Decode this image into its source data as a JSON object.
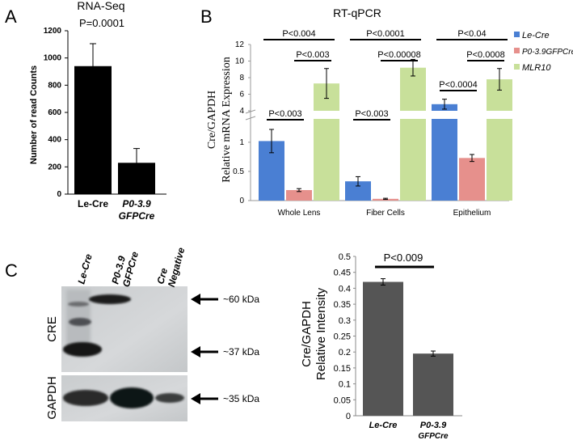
{
  "panels": {
    "a": "A",
    "b": "B",
    "c": "C"
  },
  "chart_data": [
    {
      "type": "bar",
      "panel": "A",
      "title": "RNA-Seq",
      "annotation": "P=0.0001",
      "ylabel": "Number of read Counts",
      "ylim": [
        0,
        1200
      ],
      "yticks": [
        "0",
        "200",
        "400",
        "600",
        "800",
        "1000",
        "1200"
      ],
      "categories": [
        {
          "lines": [
            "Le-Cre"
          ],
          "italic": false
        },
        {
          "lines": [
            "P0-3.9",
            "GFPCre"
          ],
          "italic": true
        }
      ],
      "values": [
        940,
        230
      ],
      "errors": [
        165,
        105
      ],
      "bar_color": "#000000",
      "grid": false
    },
    {
      "type": "bar",
      "panel": "B",
      "title": "RT-qPCR",
      "ylabel_lines": [
        "Cre/GAPDH",
        "Relative mRNA Expression"
      ],
      "broken_axis": true,
      "lower_ylim": [
        0,
        1.4
      ],
      "upper_ylim": [
        4,
        12
      ],
      "lower_yticks": [
        "0",
        "0.5",
        "1"
      ],
      "upper_yticks": [
        "4",
        "6",
        "8",
        "10",
        "12"
      ],
      "categories": [
        "Whole Lens",
        "Fiber Cells",
        "Epithelium"
      ],
      "series": [
        {
          "name": "Le-Cre",
          "color": "#4a7fd3",
          "values": [
            1.02,
            0.33,
            4.8
          ],
          "errors": [
            0.2,
            0.08,
            0.6
          ]
        },
        {
          "name": "P0-3.9GFPCre",
          "color": "#e6908c",
          "values": [
            0.18,
            0.03,
            0.73
          ],
          "errors": [
            0.025,
            0.01,
            0.06
          ]
        },
        {
          "name": "MLR10",
          "color": "#c8e09a",
          "values": [
            7.3,
            9.2,
            7.8
          ],
          "errors": [
            1.8,
            1.0,
            1.3
          ]
        }
      ],
      "annotations": [
        {
          "text": "P<0.004",
          "group": 0,
          "span": [
            0,
            2
          ]
        },
        {
          "text": "P<0.003",
          "group": 0,
          "span": [
            1,
            2
          ]
        },
        {
          "text": "P<0.003",
          "group": 0,
          "span": [
            0,
            1
          ]
        },
        {
          "text": "P<0.0001",
          "group": 1,
          "span": [
            0,
            2
          ]
        },
        {
          "text": "P<0.00008",
          "group": 1,
          "span": [
            1,
            2
          ]
        },
        {
          "text": "P<0.003",
          "group": 1,
          "span": [
            0,
            1
          ]
        },
        {
          "text": "P<0.04",
          "group": 2,
          "span": [
            0,
            2
          ]
        },
        {
          "text": "P<0.0008",
          "group": 2,
          "span": [
            1,
            2
          ]
        },
        {
          "text": "P<0.0004",
          "group": 2,
          "span": [
            0,
            1
          ]
        }
      ],
      "legend_position": "right"
    },
    {
      "type": "bar",
      "panel": "C",
      "annotation": "P<0.009",
      "ylabel_lines": [
        "Cre/GAPDH",
        "Relative Intensity"
      ],
      "ylim": [
        0,
        0.5
      ],
      "yticks": [
        "0",
        "0.05",
        "0.1",
        "0.15",
        "0.2",
        "0.25",
        "0.3",
        "0.35",
        "0.4",
        "0.45",
        "0.5"
      ],
      "categories": [
        {
          "lines": [
            "Le-Cre"
          ]
        },
        {
          "lines": [
            "P0-3.9",
            "GFPCre"
          ]
        }
      ],
      "values": [
        0.42,
        0.195
      ],
      "errors": [
        0.01,
        0.008
      ],
      "bar_color": "#555555",
      "grid": false
    }
  ],
  "blot": {
    "lanes": [
      "Le-Cre",
      "P0-3.9 GFPCre",
      "Cre Negative"
    ],
    "lane_label_lines": [
      [
        "Le-Cre"
      ],
      [
        "P0-3.9",
        "GFPCre"
      ],
      [
        "Cre",
        "Negative"
      ]
    ],
    "panel_labels": {
      "cre": "CRE",
      "gapdh": "GAPDH"
    },
    "markers": [
      "~60 kDa",
      "~37 kDa",
      "~35 kDa"
    ]
  }
}
